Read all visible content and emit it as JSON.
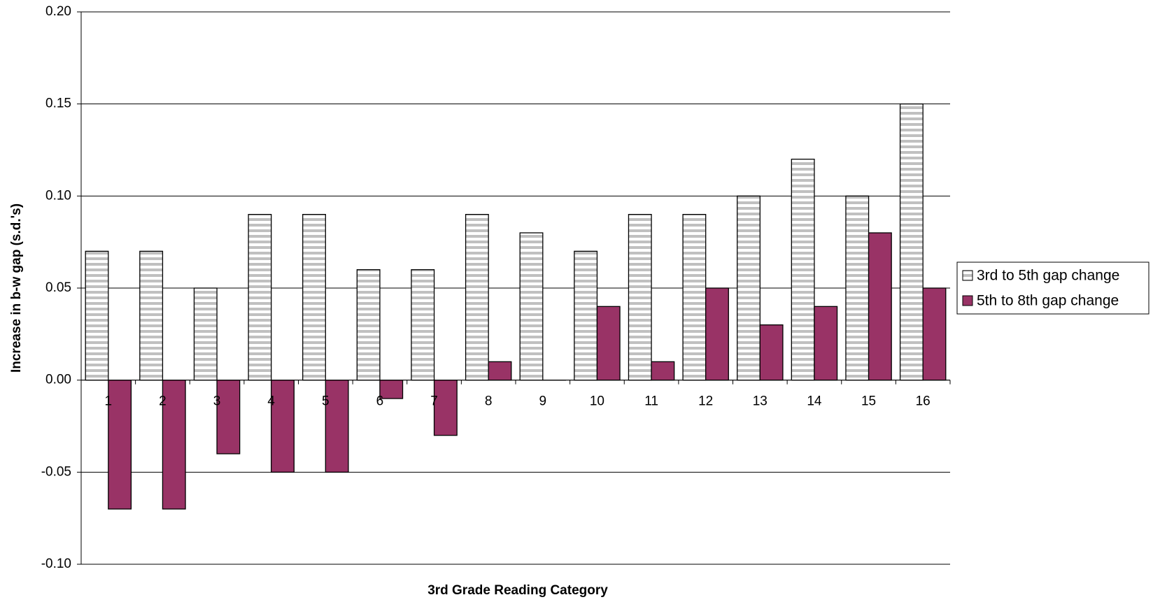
{
  "chart_data": {
    "type": "bar",
    "x_label": "3rd Grade Reading Category",
    "y_label": "Increase in b-w gap (s.d.'s)",
    "categories": [
      "1",
      "2",
      "3",
      "4",
      "5",
      "6",
      "7",
      "8",
      "9",
      "10",
      "11",
      "12",
      "13",
      "14",
      "15",
      "16"
    ],
    "series": [
      {
        "name": "3rd to 5th gap change",
        "color": "#c0c0c0",
        "values": [
          0.07,
          0.07,
          0.05,
          0.09,
          0.09,
          0.06,
          0.06,
          0.09,
          0.08,
          0.07,
          0.09,
          0.09,
          0.1,
          0.12,
          0.1,
          0.15
        ]
      },
      {
        "name": "5th to 8th gap change",
        "color": "#993366",
        "values": [
          -0.07,
          -0.07,
          -0.04,
          -0.05,
          -0.05,
          -0.01,
          -0.03,
          0.01,
          0,
          0.04,
          0.01,
          0.05,
          0.03,
          0.04,
          0.08,
          0.05
        ]
      }
    ],
    "ylim": [
      -0.1,
      0.2
    ],
    "yticks": [
      {
        "value": -0.1,
        "label": "-0.10"
      },
      -0.05,
      {
        "value": 0,
        "label": "0.00"
      },
      0.05,
      {
        "value": 0.1,
        "label": "0.10"
      },
      0.15,
      {
        "value": 0.2,
        "label": "0.20"
      }
    ],
    "grid": true,
    "legend": "right"
  }
}
